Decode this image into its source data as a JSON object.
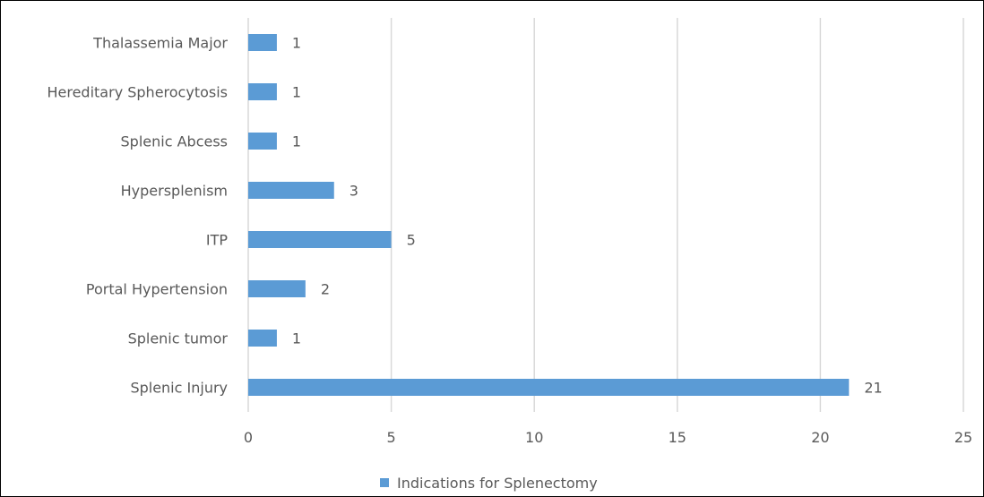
{
  "chart_data": {
    "type": "bar",
    "orientation": "horizontal",
    "categories": [
      "Splenic Injury",
      "Splenic tumor",
      "Portal Hypertension",
      "ITP",
      "Hypersplenism",
      "Splenic Abcess",
      "Hereditary Spherocytosis",
      "Thalassemia Major"
    ],
    "series": [
      {
        "name": "Indications for Splenectomy",
        "values": [
          21,
          1,
          2,
          5,
          3,
          1,
          1,
          1
        ],
        "color": "#5B9BD5"
      }
    ],
    "xlim": [
      0,
      25
    ],
    "xticks": [
      0,
      5,
      10,
      15,
      20,
      25
    ],
    "tick_labels": [
      "0",
      "5",
      "10",
      "15",
      "20",
      "25"
    ],
    "grid": "vertical",
    "legend_position": "bottom",
    "data_labels": true,
    "title": "",
    "xlabel": "",
    "ylabel": ""
  },
  "colors": {
    "bar": "#5B9BD5",
    "grid": "#D9D9D9",
    "text": "#595959"
  }
}
